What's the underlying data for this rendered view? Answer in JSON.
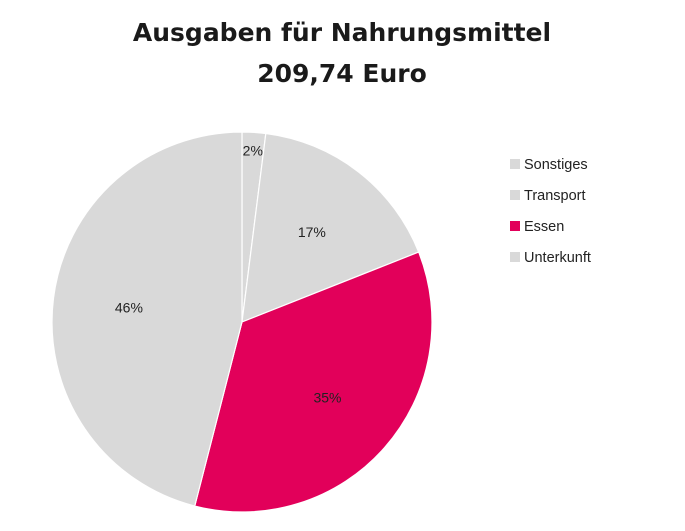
{
  "chart_data": {
    "type": "pie",
    "title": "Ausgaben für Nahrungsmittel",
    "subtitle": "209,74 Euro",
    "categories": [
      "Sonstiges",
      "Transport",
      "Essen",
      "Unterkunft"
    ],
    "values": [
      2,
      17,
      35,
      46
    ],
    "labels": [
      "2%",
      "17%",
      "35%",
      "46%"
    ],
    "colors": [
      "#d9d9d9",
      "#d9d9d9",
      "#e2005a",
      "#d9d9d9"
    ],
    "slice_border_color": "#ffffff",
    "legend_position": "right",
    "start_angle_deg": 0,
    "direction": "clockwise"
  }
}
